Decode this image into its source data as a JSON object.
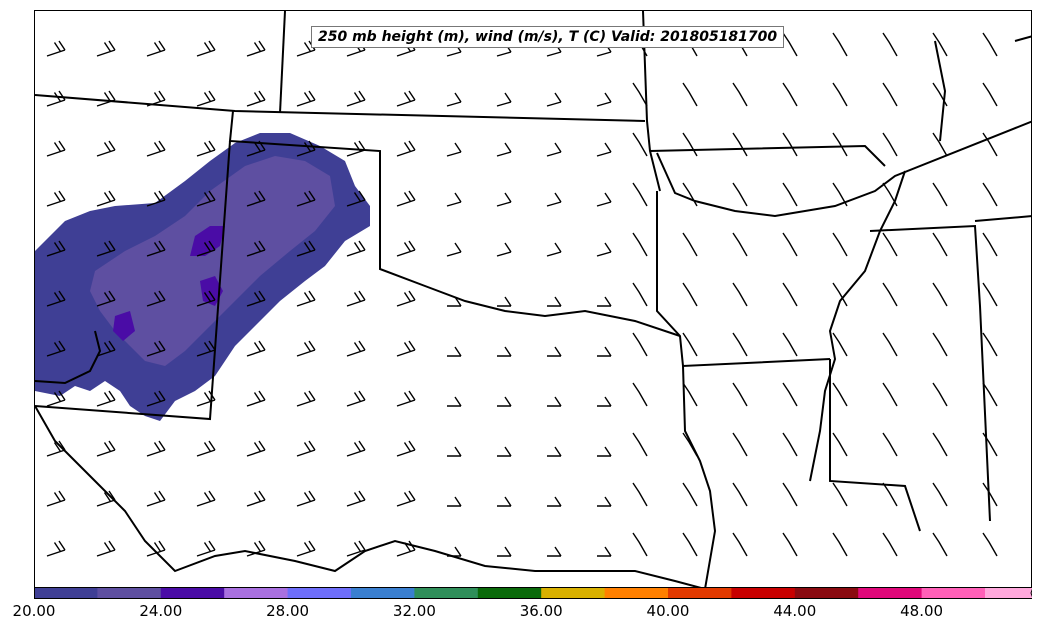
{
  "title": "250 mb height (m), wind (m/s), T (C) Valid: 201805181700",
  "colorbar": {
    "colors": [
      "#3f3f95",
      "#5e4fa1",
      "#4a0ca6",
      "#a970e0",
      "#6e6efa",
      "#3a7fd0",
      "#2f8f5a",
      "#0a6a0a",
      "#d9b100",
      "#ff8000",
      "#e23a00",
      "#c80000",
      "#8a0a10",
      "#e0087a",
      "#ff60b8",
      "#ffa8dc"
    ],
    "ticks": [
      "20.00",
      "24.00",
      "28.00",
      "32.00",
      "36.00",
      "40.00",
      "44.00",
      "48.00"
    ]
  }
}
